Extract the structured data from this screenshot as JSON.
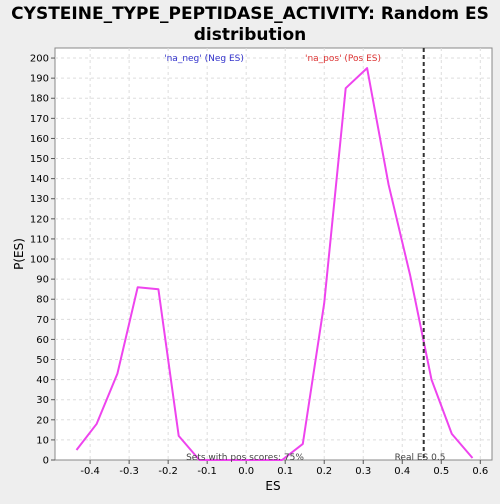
{
  "chart_data": {
    "type": "line",
    "title_line1": "CYSTEINE_TYPE_PEPTIDASE_ACTIVITY: Random ES",
    "title_line2": "distribution",
    "xlabel": "ES",
    "ylabel": "P(ES)",
    "xlim": [
      -0.49,
      0.63
    ],
    "ylim": [
      0,
      205
    ],
    "x_ticks": [
      -0.4,
      -0.3,
      -0.2,
      -0.1,
      0.0,
      0.1,
      0.2,
      0.3,
      0.4,
      0.5,
      0.6
    ],
    "x_tick_labels": [
      "-0.4",
      "-0.3",
      "-0.2",
      "-0.1",
      "0.0",
      "0.1",
      "0.2",
      "0.3",
      "0.4",
      "0.5",
      "0.6"
    ],
    "y_ticks": [
      0,
      10,
      20,
      30,
      40,
      50,
      60,
      70,
      80,
      90,
      100,
      110,
      120,
      130,
      140,
      150,
      160,
      170,
      180,
      190,
      200
    ],
    "grid": true,
    "series": [
      {
        "color": "#ee44ee",
        "x": [
          -0.435,
          -0.383,
          -0.33,
          -0.278,
          -0.225,
          -0.173,
          -0.12,
          -0.068,
          -0.015,
          0.04,
          0.092,
          0.145,
          0.2,
          0.255,
          0.31,
          0.365,
          0.42,
          0.475,
          0.527,
          0.58
        ],
        "y": [
          5,
          18,
          43,
          86,
          85,
          12,
          0,
          0,
          0,
          0,
          0,
          8,
          78,
          185,
          195,
          137,
          92,
          40,
          13,
          1
        ]
      }
    ],
    "real_es": {
      "x": 0.455,
      "label": "Real ES 0.5",
      "color": "#333333"
    },
    "annotations": {
      "neg_label": "'na_neg' (Neg ES)",
      "neg_color": "#3333cc",
      "pos_label": "'na_pos' (Pos ES)",
      "pos_color": "#dd3333",
      "sets_label": "Sets with pos scores: 75%"
    }
  }
}
